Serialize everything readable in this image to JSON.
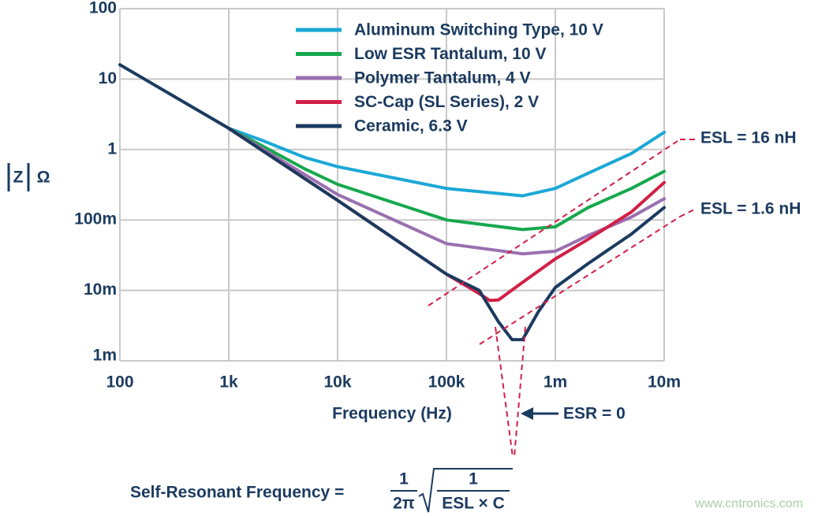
{
  "chart_data": {
    "type": "line",
    "xlabel": "Frequency (Hz)",
    "ylabel": "Z",
    "ylabel_unit": "Ω",
    "log_x": true,
    "log_y": true,
    "grid": true,
    "legend": "upper right",
    "xlim": [
      100,
      10000000
    ],
    "ylim": [
      0.001,
      100
    ],
    "xticks": [
      100,
      {
        "value": 1000,
        "label": "1k"
      },
      {
        "value": 10000,
        "label": "10k"
      },
      {
        "value": 100000,
        "label": "100k"
      },
      {
        "value": 1000000,
        "label": "1m"
      },
      {
        "value": 10000000,
        "label": "10m"
      }
    ],
    "yticks": [
      {
        "value": 0.001,
        "label": "1m"
      },
      {
        "value": 0.01,
        "label": "10m"
      },
      {
        "value": 0.1,
        "label": "100m"
      },
      1,
      10,
      100
    ],
    "series": [
      {
        "name": "Aluminum Switching Type, 10 V",
        "color": "#1ba8d6",
        "x": [
          1000,
          2000,
          5000,
          10000,
          100000,
          500000,
          1000000,
          2000000,
          5000000,
          10000000
        ],
        "values": [
          2,
          1.36,
          0.77,
          0.57,
          0.28,
          0.22,
          0.28,
          0.46,
          0.88,
          1.76
        ]
      },
      {
        "name": "Low ESR Tantalum, 10 V",
        "color": "#16a84e",
        "x": [
          1000,
          2000,
          5000,
          10000,
          100000,
          500000,
          1000000,
          2000000,
          5000000,
          10000000
        ],
        "values": [
          2,
          1.14,
          0.53,
          0.32,
          0.1,
          0.073,
          0.08,
          0.15,
          0.28,
          0.49
        ]
      },
      {
        "name": "Polymer Tantalum, 4 V",
        "color": "#9a6fb0",
        "x": [
          1000,
          10000,
          100000,
          500000,
          1000000,
          2000000,
          5000000,
          10000000
        ],
        "values": [
          2,
          0.23,
          0.046,
          0.033,
          0.036,
          0.06,
          0.11,
          0.2
        ]
      },
      {
        "name": "SC-Cap (SL Series), 2 V",
        "color": "#d21f47",
        "x": [
          1000,
          10000,
          100000,
          200000,
          250000,
          300000,
          500000,
          1000000,
          2000000,
          5000000,
          10000000
        ],
        "values": [
          2,
          0.19,
          0.017,
          0.009,
          0.0072,
          0.0073,
          0.013,
          0.028,
          0.053,
          0.13,
          0.34
        ]
      },
      {
        "name": "Ceramic, 6.3 V",
        "color": "#1b3a5f",
        "x": [
          100,
          1000,
          10000,
          100000,
          200000,
          300000,
          400000,
          500000,
          700000,
          1000000,
          2000000,
          5000000,
          10000000
        ],
        "values": [
          16,
          2,
          0.19,
          0.017,
          0.01,
          0.0036,
          0.002,
          0.002,
          0.005,
          0.011,
          0.024,
          0.063,
          0.15
        ]
      }
    ],
    "annotations": {
      "esl_high": "ESL = 16 nH",
      "esl_low": "ESL = 1.6 nH",
      "esr": "ESR = 0",
      "formula_lhs": "Self-Resonant Frequency =",
      "formula_num": "1",
      "formula_den": "2π",
      "formula_root_num": "1",
      "formula_root_den": "ESL × C"
    },
    "watermark": "www.cntronics.com"
  }
}
